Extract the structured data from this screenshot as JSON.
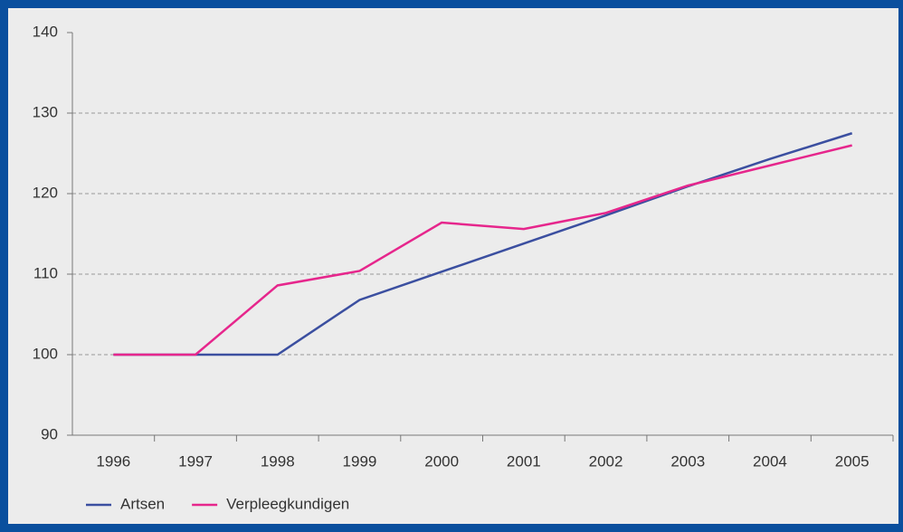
{
  "chart_data": {
    "type": "line",
    "categories": [
      "1996",
      "1997",
      "1998",
      "1999",
      "2000",
      "2001",
      "2002",
      "2003",
      "2004",
      "2005"
    ],
    "series": [
      {
        "name": "Artsen",
        "color": "#3b4fa0",
        "values": [
          100,
          100,
          100,
          106.8,
          110.3,
          113.8,
          117.3,
          120.9,
          124.3,
          127.5
        ]
      },
      {
        "name": "Verpleegkundigen",
        "color": "#e6268c",
        "values": [
          100,
          100,
          108.6,
          110.4,
          116.4,
          115.6,
          117.6,
          121,
          123.5,
          126
        ]
      }
    ],
    "ylim": [
      90,
      140
    ],
    "yticks": [
      90,
      100,
      110,
      120,
      130,
      140
    ],
    "grid": true,
    "legend": "bottom-left"
  }
}
